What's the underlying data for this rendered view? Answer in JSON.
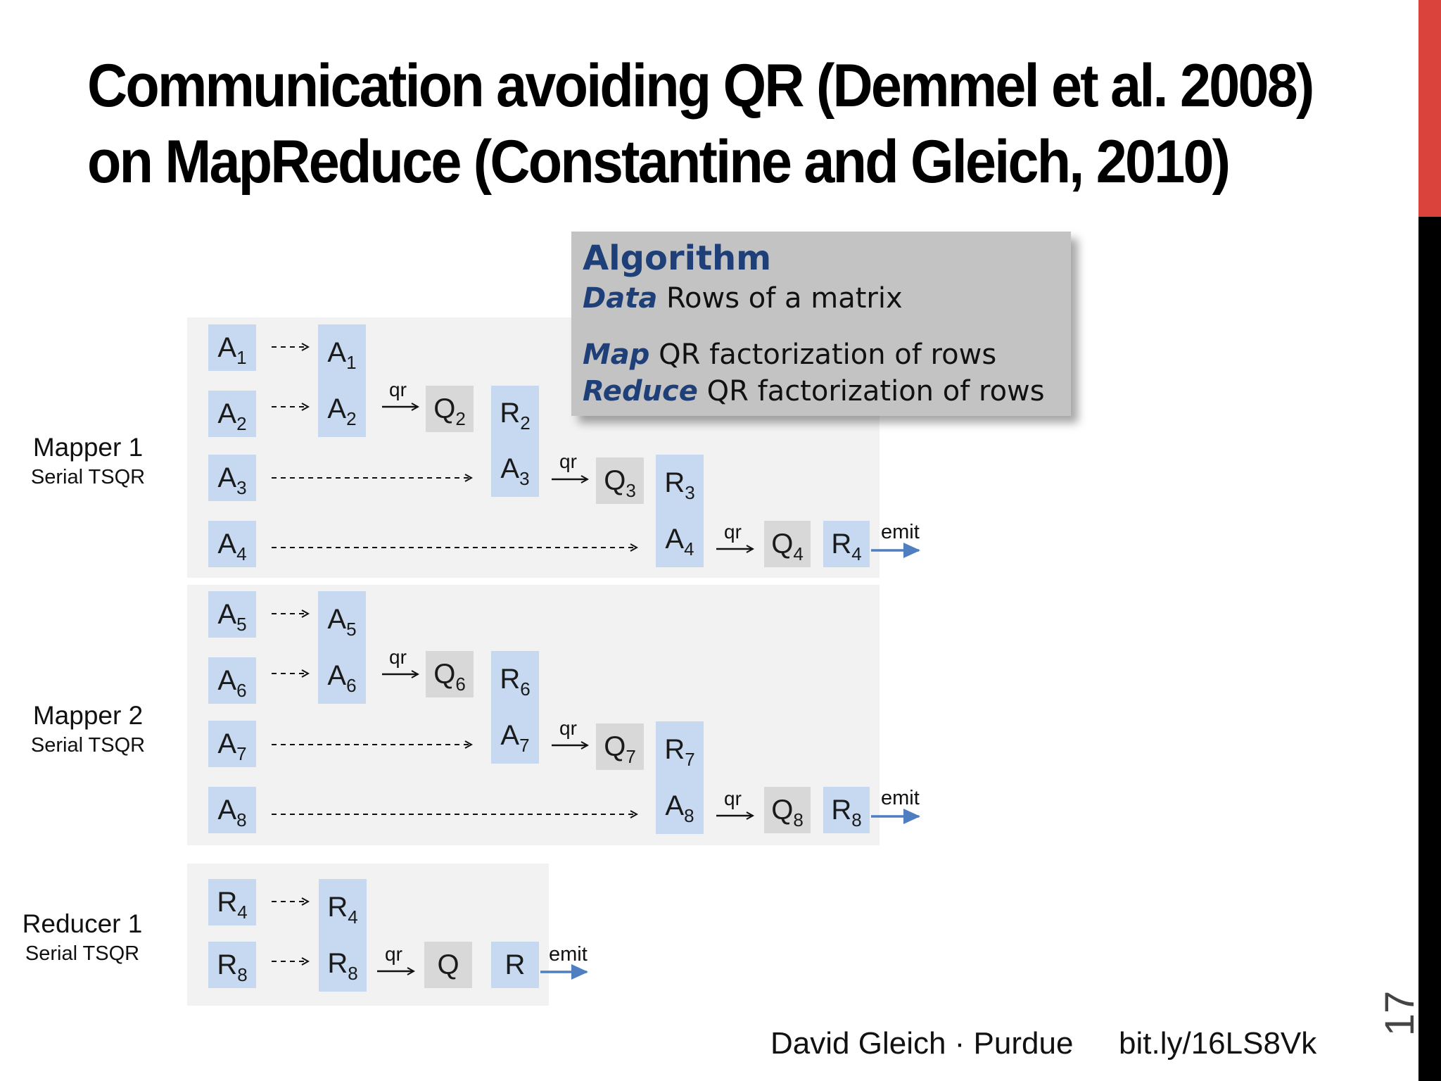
{
  "title": {
    "line1": "Communication avoiding QR (Demmel et al. 2008)",
    "line2": "on MapReduce (Constantine and Gleich, 2010)"
  },
  "algorithm": {
    "heading": "Algorithm",
    "data_key": "Data",
    "data_text": " Rows of a matrix",
    "map_key": "Map",
    "map_text": " QR factorization of rows",
    "reduce_key": "Reduce",
    "reduce_text": " QR factorization of rows"
  },
  "mapper1": {
    "label": "Mapper 1",
    "sub": "Serial TSQR"
  },
  "mapper2": {
    "label": "Mapper 2",
    "sub": "Serial TSQR"
  },
  "reducer1": {
    "label": "Reducer 1",
    "sub": "Serial TSQR"
  },
  "edge_labels": {
    "qr": "qr",
    "emit": "emit"
  },
  "reducer_outputs": {
    "q": "Q",
    "r": "R"
  },
  "footer": {
    "author": "David Gleich · Purdue",
    "link": "bit.ly/16LS8Vk"
  },
  "page_number": "17",
  "colors": {
    "block_blue": "#c6d9f0",
    "block_gray": "#d8d8d8",
    "arrow_blue": "#4f7fc0",
    "accent_red": "#d9433b",
    "algo_blue": "#1f3f78"
  }
}
